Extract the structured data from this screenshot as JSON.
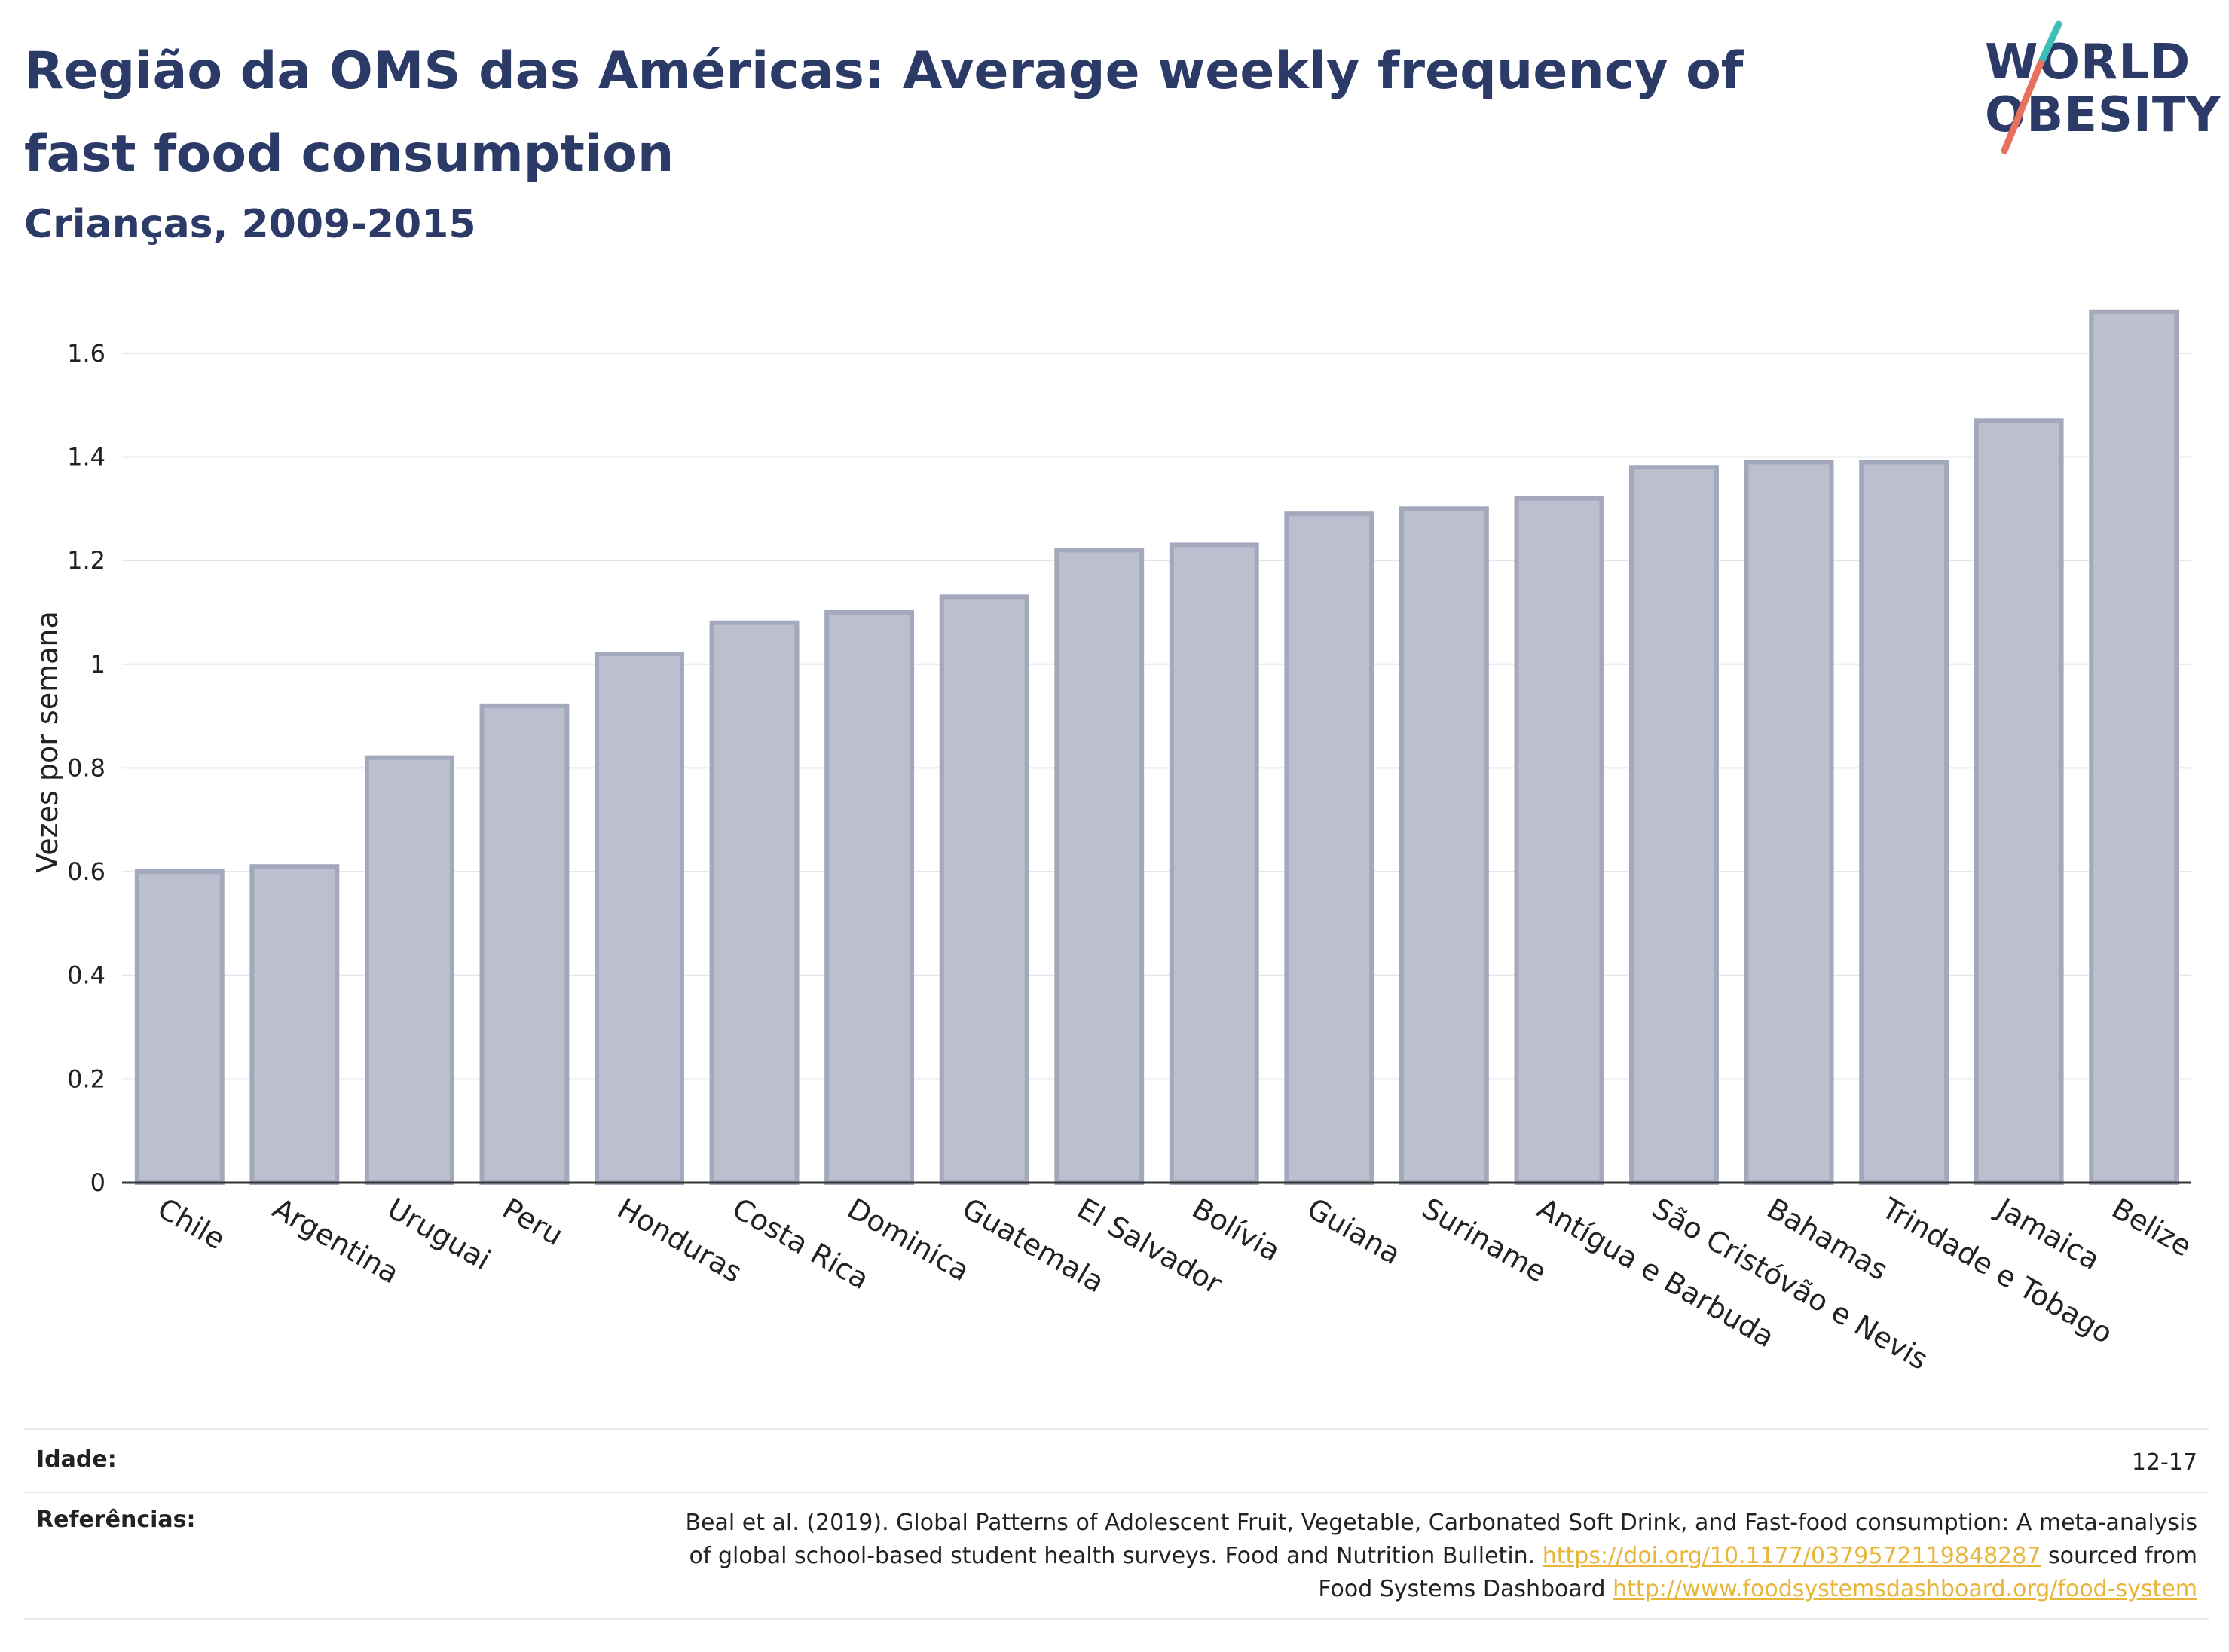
{
  "header": {
    "title": "Região da OMS das Américas: Average weekly frequency of fast food consumption",
    "subtitle": "Crianças, 2009-2015"
  },
  "logo": {
    "line1": "WORLD",
    "line2": "OBESITY",
    "accent_teal": "#3bbfb7",
    "accent_red": "#e8705e"
  },
  "chart_data": {
    "type": "bar",
    "ylabel": "Vezes por semana",
    "xlabel": "",
    "ylim": [
      0,
      1.7
    ],
    "yticks": [
      0,
      0.2,
      0.4,
      0.6,
      0.8,
      1,
      1.2,
      1.4,
      1.6
    ],
    "ytick_labels": [
      "0",
      "0.2",
      "0.4",
      "0.6",
      "0.8",
      "1",
      "1.2",
      "1.4",
      "1.6"
    ],
    "categories": [
      "Chile",
      "Argentina",
      "Uruguai",
      "Peru",
      "Honduras",
      "Costa Rica",
      "Dominica",
      "Guatemala",
      "El Salvador",
      "Bolívia",
      "Guiana",
      "Suriname",
      "Antígua e Barbuda",
      "São Cristóvão e Nevis",
      "Bahamas",
      "Trindade e Tobago",
      "Jamaica",
      "Belize"
    ],
    "values": [
      0.6,
      0.61,
      0.82,
      0.92,
      1.02,
      1.08,
      1.1,
      1.13,
      1.22,
      1.23,
      1.29,
      1.3,
      1.32,
      1.38,
      1.39,
      1.39,
      1.47,
      1.68
    ],
    "grid": true,
    "bar_fill": "#bcc0ce",
    "bar_stroke": "#a3a8bd"
  },
  "footer": {
    "age_label": "Idade:",
    "age_value": "12-17",
    "ref_label": "Referências:",
    "ref_line1": "Beal et al. (2019). Global Patterns of Adolescent Fruit, Vegetable, Carbonated Soft Drink, and Fast-food consumption: A meta-analysis",
    "ref_line2_text": "of global school-based student health surveys. Food and Nutrition Bulletin.",
    "ref_line2_link": "https://doi.org/10.1177/0379572119848287",
    "ref_line2_tail": "sourced from",
    "ref_line3_text": "Food Systems Dashboard",
    "ref_line3_link": "http://www.foodsystemsdashboard.org/food-system"
  }
}
